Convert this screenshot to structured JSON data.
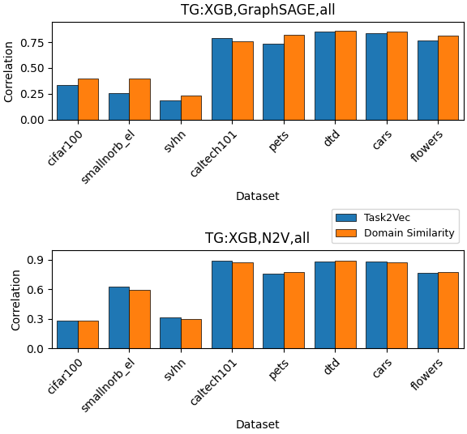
{
  "chart_data": [
    {
      "type": "bar",
      "title": "TG:XGB,GraphSAGE,all",
      "xlabel": "Dataset",
      "ylabel": "Correlation",
      "categories": [
        "cifar100",
        "smallnorb_el",
        "svhn",
        "caltech101",
        "pets",
        "dtd",
        "cars",
        "flowers"
      ],
      "series": [
        {
          "name": "Task2Vec",
          "values": [
            0.335,
            0.255,
            0.185,
            0.79,
            0.735,
            0.855,
            0.84,
            0.765
          ]
        },
        {
          "name": "Domain Similarity",
          "values": [
            0.395,
            0.395,
            0.235,
            0.76,
            0.82,
            0.86,
            0.85,
            0.815
          ]
        }
      ],
      "ylim": [
        0.0,
        0.95
      ],
      "yticks": [
        {
          "value": 0.0,
          "label": "0.00"
        },
        0.25,
        {
          "value": 0.5,
          "label": "0.50"
        },
        0.75
      ]
    },
    {
      "type": "bar",
      "title": "TG:XGB,N2V,all",
      "xlabel": "Dataset",
      "ylabel": "Correlation",
      "categories": [
        "cifar100",
        "smallnorb_el",
        "svhn",
        "caltech101",
        "pets",
        "dtd",
        "cars",
        "flowers"
      ],
      "series": [
        {
          "name": "Task2Vec",
          "values": [
            0.285,
            0.625,
            0.315,
            0.89,
            0.76,
            0.885,
            0.88,
            0.77
          ]
        },
        {
          "name": "Domain Similarity",
          "values": [
            0.28,
            0.595,
            0.295,
            0.875,
            0.775,
            0.895,
            0.875,
            0.775
          ]
        }
      ],
      "ylim": [
        0.0,
        1.0
      ],
      "yticks": [
        0.0,
        0.3,
        0.6,
        0.9
      ],
      "legend": "lower right"
    }
  ]
}
